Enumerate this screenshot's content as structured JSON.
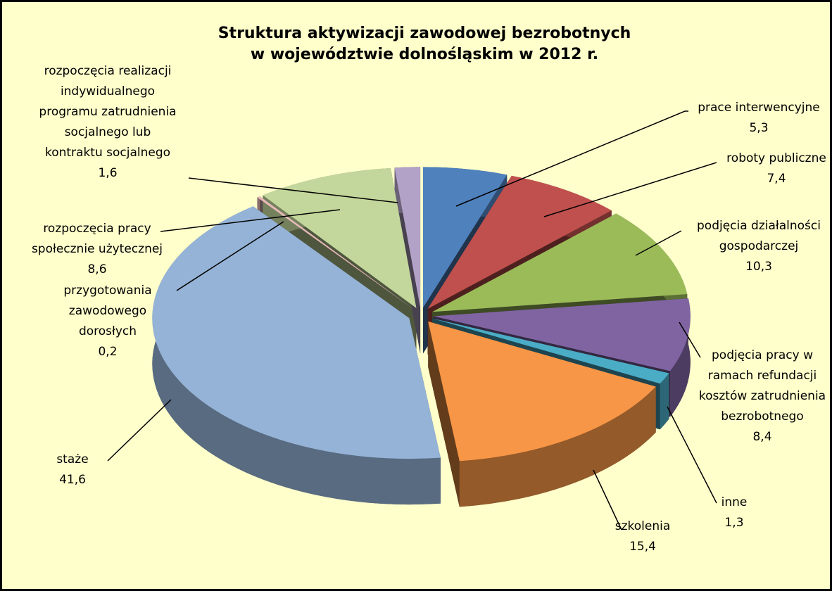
{
  "chart_data": {
    "type": "pie",
    "title": "Struktura aktywizacji zawodowej bezrobotnych\nw województwie dolnośląskim w 2012 r.",
    "categories": [
      "prace interwencyjne",
      "roboty publiczne",
      "podjęcia działalności gospodarczej",
      "podjęcia pracy w ramach refundacji kosztów zatrudnienia bezrobotnego",
      "inne",
      "szkolenia",
      "staże",
      "przygotowania zawodowego dorosłych",
      "rozpoczęcia pracy społecznie użytecznej",
      "rozpoczęcia realizacji indywidualnego programu zatrudnienia socjalnego lub kontraktu socjalnego"
    ],
    "values": [
      5.3,
      7.4,
      10.3,
      8.4,
      1.3,
      15.4,
      41.6,
      0.2,
      8.6,
      1.6
    ],
    "value_labels": [
      "5,3",
      "7,4",
      "10,3",
      "8,4",
      "1,3",
      "15,4",
      "41,6",
      "0,2",
      "8,6",
      "1,6"
    ],
    "colors": [
      "#4f81bd",
      "#c0504d",
      "#9bbb59",
      "#8064a2",
      "#4bacc6",
      "#f79646",
      "#95b3d7",
      "#e6b9b8",
      "#c3d69b",
      "#b3a2c7"
    ]
  }
}
